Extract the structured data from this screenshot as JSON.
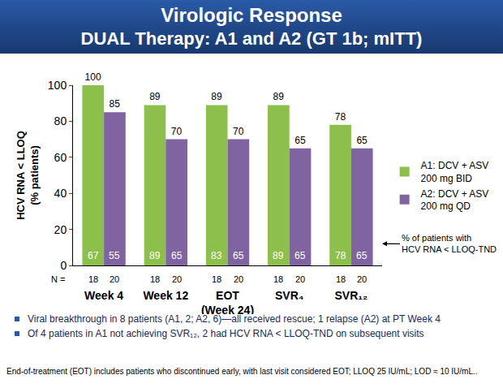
{
  "chart_data": {
    "type": "bar",
    "title": "Virologic Response",
    "subtitle": "DUAL Therapy: A1 and A2 (GT 1b; mITT)",
    "y_label": "HCV RNA < LLOQ (% patients)",
    "categories": [
      "Week 4",
      "Week 12",
      "EOT (Week 24)",
      "SVR₄",
      "SVR₁₂"
    ],
    "series": [
      {
        "name": "A1: DCV + ASV 200 mg BID",
        "color": "#8CC04B",
        "values": [
          100,
          89,
          89,
          89,
          78
        ],
        "tnd_values": [
          67,
          89,
          83,
          89,
          78
        ],
        "n": [
          18,
          18,
          18,
          18,
          18
        ]
      },
      {
        "name": "A2: DCV + ASV 200 mg QD",
        "color": "#8064A2",
        "values": [
          85,
          70,
          70,
          65,
          65
        ],
        "tnd_values": [
          55,
          65,
          65,
          65,
          65
        ],
        "n": [
          20,
          20,
          20,
          20,
          20
        ]
      }
    ],
    "n_label": "N =",
    "tnd_note": "% of patients with HCV RNA < LLOQ-TND",
    "ylim": [
      0,
      100
    ],
    "yticks": [
      0,
      20,
      40,
      60,
      80,
      100
    ],
    "grid": false,
    "data_labels": true,
    "legend": "right",
    "notes": [
      "Viral breakthrough in 8 patients (A1, 2; A2, 6)—all received rescue; 1 relapse (A2) at PT Week 4",
      "Of 4 patients in A1 not achieving SVR₁₂, 2 had HCV RNA < LLOQ-TND on subsequent visits"
    ],
    "footnote": "End-of-treatment (EOT) includes patients who discontinued early, with last visit considered EOT; LLOQ 25 IU/mL; LOD ≈ 10 IU/mL.."
  }
}
